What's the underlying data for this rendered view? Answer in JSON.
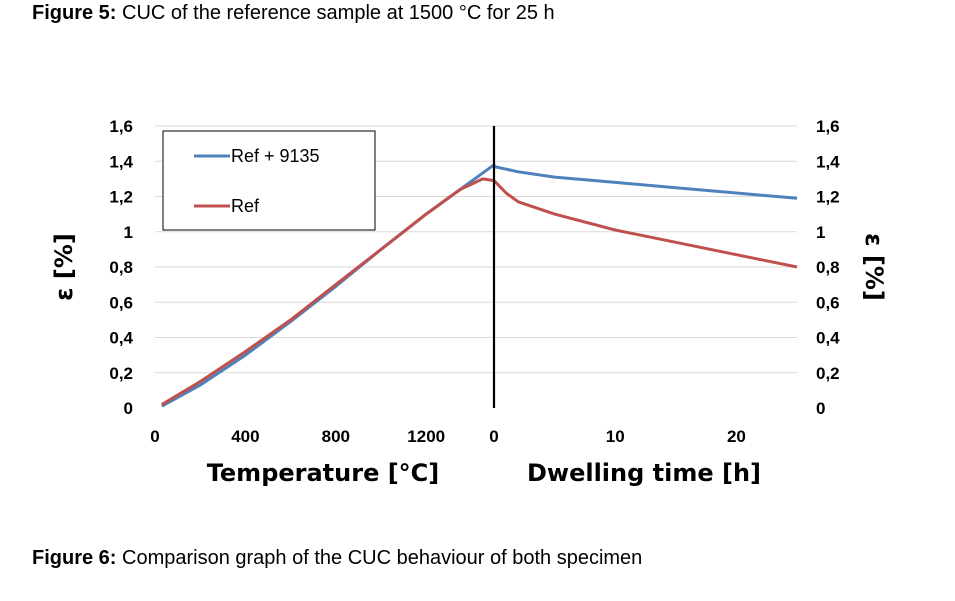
{
  "captions": {
    "top": {
      "label": "Figure 5:",
      "text": " CUC of the reference sample at 1500 °C for 25 h"
    },
    "bottom": {
      "label": "Figure 6:",
      "text": " Comparison graph of the CUC behaviour of both specimen"
    }
  },
  "chart_data": {
    "type": "line",
    "title": "",
    "ylabel_left": "ε [%]",
    "ylabel_right": "ε [%]",
    "ylim": [
      0,
      1.6
    ],
    "y_ticks": [
      "0",
      "0,2",
      "0,4",
      "0,6",
      "0,8",
      "1",
      "1,2",
      "1,4",
      "1,6"
    ],
    "y_tick_values": [
      0,
      0.2,
      0.4,
      0.6,
      0.8,
      1.0,
      1.2,
      1.4,
      1.6
    ],
    "grid": "horizontal",
    "legend": "top-left",
    "panels": [
      {
        "xlabel": "Temperature [°C]",
        "xlim": [
          0,
          1500
        ],
        "x_ticks": [
          "0",
          "400",
          "800",
          "1200"
        ],
        "x_tick_values": [
          0,
          400,
          800,
          1200
        ]
      },
      {
        "xlabel": "Dwelling time [h]",
        "xlim": [
          0,
          25
        ],
        "x_ticks": [
          "0",
          "10",
          "20"
        ],
        "x_tick_values": [
          0,
          10,
          20
        ]
      }
    ],
    "series": [
      {
        "name": "Ref + 9135",
        "color": "#4f81bd",
        "heating": {
          "x": [
            30,
            200,
            400,
            600,
            800,
            1000,
            1200,
            1350,
            1500
          ],
          "y": [
            0.01,
            0.13,
            0.3,
            0.49,
            0.69,
            0.9,
            1.1,
            1.24,
            1.38
          ]
        },
        "dwelling": {
          "x": [
            0,
            2,
            5,
            10,
            15,
            20,
            25
          ],
          "y": [
            1.37,
            1.34,
            1.31,
            1.28,
            1.25,
            1.22,
            1.19
          ]
        }
      },
      {
        "name": "Ref",
        "color": "#c0504d",
        "heating": {
          "x": [
            30,
            200,
            400,
            600,
            800,
            1000,
            1200,
            1350,
            1450,
            1500
          ],
          "y": [
            0.02,
            0.15,
            0.32,
            0.5,
            0.7,
            0.9,
            1.1,
            1.24,
            1.3,
            1.29
          ]
        },
        "dwelling": {
          "x": [
            0,
            1,
            2,
            5,
            10,
            15,
            20,
            25
          ],
          "y": [
            1.29,
            1.22,
            1.17,
            1.1,
            1.01,
            0.94,
            0.87,
            0.8
          ]
        }
      }
    ]
  }
}
